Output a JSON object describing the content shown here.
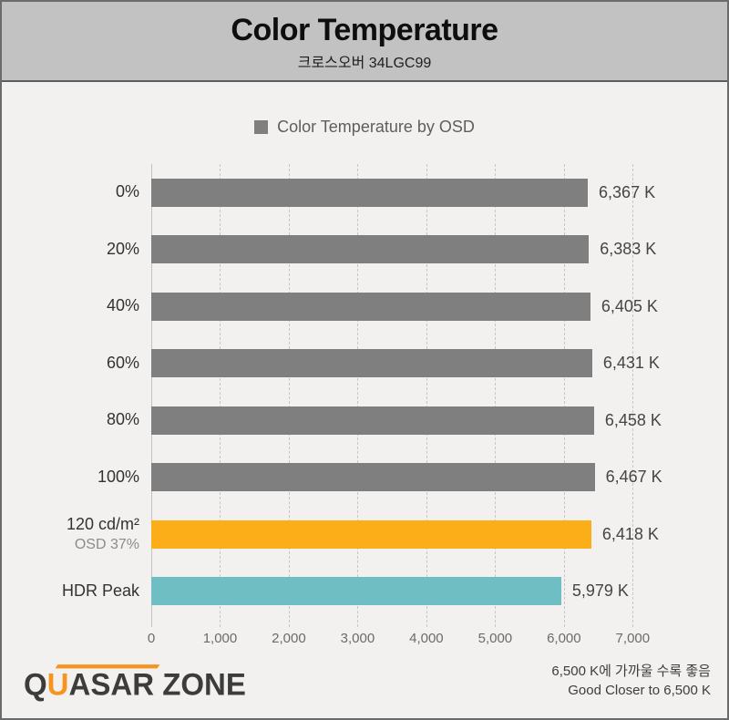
{
  "header": {
    "title": "Color Temperature",
    "subtitle": "크로스오버 34LGC99"
  },
  "legend": {
    "label": "Color Temperature by OSD",
    "color": "#7f7f7f"
  },
  "chart_data": {
    "type": "bar",
    "orientation": "horizontal",
    "title": "Color Temperature",
    "subtitle": "크로스오버 34LGC99",
    "legend_entries": [
      "Color Temperature by OSD"
    ],
    "categories": [
      "0%",
      "20%",
      "40%",
      "60%",
      "80%",
      "100%",
      "120 cd/m²",
      "HDR Peak"
    ],
    "sublabels": [
      "",
      "",
      "",
      "",
      "",
      "",
      "OSD 37%",
      ""
    ],
    "values": [
      6367,
      6383,
      6405,
      6431,
      6458,
      6467,
      6418,
      5979
    ],
    "value_labels": [
      "6,367 K",
      "6,383 K",
      "6,405 K",
      "6,431 K",
      "6,458 K",
      "6,467 K",
      "6,418 K",
      "5,979 K"
    ],
    "bar_colors": [
      "#7f7f7f",
      "#7f7f7f",
      "#7f7f7f",
      "#7f7f7f",
      "#7f7f7f",
      "#7f7f7f",
      "#fbae17",
      "#6fbec4"
    ],
    "xticks": [
      0,
      1000,
      2000,
      3000,
      4000,
      5000,
      6000,
      7000
    ],
    "xtick_labels": [
      "0",
      "1,000",
      "2,000",
      "3,000",
      "4,000",
      "5,000",
      "6,000",
      "7,000"
    ],
    "xlim": [
      0,
      8400
    ],
    "grid": "vertical-dashed",
    "legend_position": "top-center",
    "ylabel": "",
    "xlabel": ""
  },
  "footer": {
    "logo_prefix": "Q",
    "logo_accent": "U",
    "logo_rest": "ASAR ZONE",
    "note_ko": "6,500 K에 가까울 수록 좋음",
    "note_en": "Good Closer to 6,500 K"
  },
  "colors": {
    "header_bg": "#c2c2c2",
    "body_bg": "#f2f1f0",
    "bar_default": "#7f7f7f",
    "bar_sdr_reference": "#fbae17",
    "bar_hdr_peak": "#6fbec4",
    "logo_accent": "#f7941e"
  }
}
